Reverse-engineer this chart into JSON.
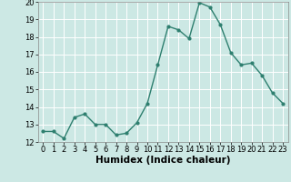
{
  "x": [
    0,
    1,
    2,
    3,
    4,
    5,
    6,
    7,
    8,
    9,
    10,
    11,
    12,
    13,
    14,
    15,
    16,
    17,
    18,
    19,
    20,
    21,
    22,
    23
  ],
  "y": [
    12.6,
    12.6,
    12.2,
    13.4,
    13.6,
    13.0,
    13.0,
    12.4,
    12.5,
    13.1,
    14.2,
    16.4,
    18.6,
    18.4,
    17.9,
    19.95,
    19.7,
    18.7,
    17.1,
    16.4,
    16.5,
    15.8,
    14.8,
    14.2
  ],
  "xlabel": "Humidex (Indice chaleur)",
  "ylim": [
    12,
    20
  ],
  "xlim": [
    -0.5,
    23.5
  ],
  "yticks": [
    12,
    13,
    14,
    15,
    16,
    17,
    18,
    19,
    20
  ],
  "xticks": [
    0,
    1,
    2,
    3,
    4,
    5,
    6,
    7,
    8,
    9,
    10,
    11,
    12,
    13,
    14,
    15,
    16,
    17,
    18,
    19,
    20,
    21,
    22,
    23
  ],
  "line_color": "#2e7f6f",
  "marker": "o",
  "marker_size": 2.0,
  "line_width": 1.0,
  "bg_color": "#cce8e4",
  "grid_color": "#ffffff",
  "tick_label_fontsize": 6.0,
  "xlabel_fontsize": 7.5
}
